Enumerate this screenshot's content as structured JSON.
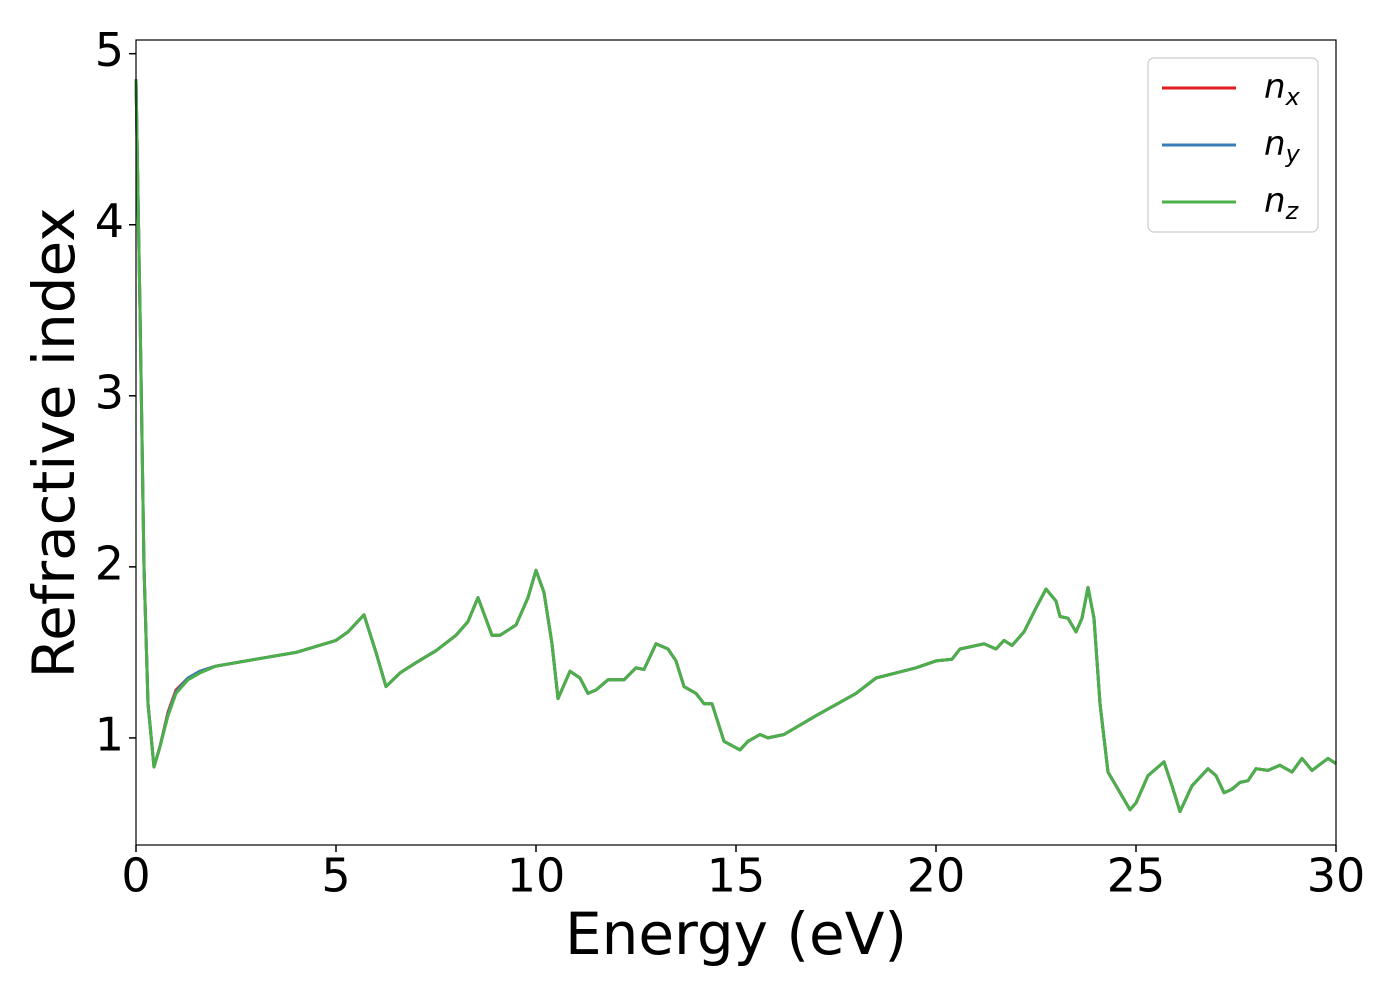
{
  "chart_data": {
    "type": "line",
    "xlabel": "Energy (eV)",
    "ylabel": "Refractive index",
    "x": [
      0,
      0.1,
      0.2,
      0.3,
      0.45,
      0.6,
      0.8,
      1.0,
      1.3,
      1.6,
      2,
      3,
      4,
      5,
      5.3,
      5.7,
      6.0,
      6.25,
      6.6,
      7,
      7.5,
      8,
      8.3,
      8.55,
      8.9,
      9.1,
      9.5,
      9.8,
      10.0,
      10.2,
      10.4,
      10.55,
      10.85,
      11.1,
      11.3,
      11.5,
      11.8,
      12.2,
      12.5,
      12.7,
      12.9,
      13.0,
      13.3,
      13.5,
      13.7,
      14.0,
      14.2,
      14.4,
      14.7,
      15.1,
      15.3,
      15.6,
      15.8,
      16.2,
      17,
      18,
      18.5,
      19,
      19.5,
      20,
      20.4,
      20.6,
      21.2,
      21.5,
      21.7,
      21.9,
      22.2,
      22.5,
      22.75,
      23.0,
      23.1,
      23.3,
      23.5,
      23.65,
      23.8,
      23.95,
      24.1,
      24.3,
      24.5,
      24.85,
      25.0,
      25.3,
      25.7,
      25.9,
      26.1,
      26.4,
      26.8,
      27.0,
      27.2,
      27.4,
      27.6,
      27.8,
      28.0,
      28.3,
      28.6,
      28.9,
      29.15,
      29.4,
      29.8,
      30.0
    ],
    "series": [
      {
        "name": "n_x",
        "color": "#e41a1c",
        "values": [
          4.85,
          3.5,
          2.0,
          1.2,
          0.83,
          0.95,
          1.15,
          1.28,
          1.35,
          1.39,
          1.42,
          1.46,
          1.5,
          1.57,
          1.62,
          1.72,
          1.5,
          1.3,
          1.38,
          1.44,
          1.51,
          1.6,
          1.68,
          1.82,
          1.6,
          1.6,
          1.66,
          1.82,
          1.98,
          1.85,
          1.55,
          1.23,
          1.39,
          1.35,
          1.26,
          1.28,
          1.34,
          1.34,
          1.41,
          1.4,
          1.5,
          1.55,
          1.52,
          1.45,
          1.3,
          1.26,
          1.2,
          1.2,
          0.98,
          0.93,
          0.98,
          1.02,
          1.0,
          1.02,
          1.13,
          1.26,
          1.35,
          1.38,
          1.41,
          1.45,
          1.46,
          1.52,
          1.55,
          1.52,
          1.57,
          1.54,
          1.62,
          1.76,
          1.87,
          1.8,
          1.71,
          1.7,
          1.62,
          1.7,
          1.88,
          1.7,
          1.2,
          0.8,
          0.72,
          0.58,
          0.62,
          0.78,
          0.86,
          0.72,
          0.57,
          0.72,
          0.82,
          0.78,
          0.68,
          0.7,
          0.74,
          0.75,
          0.82,
          0.81,
          0.84,
          0.8,
          0.88,
          0.81,
          0.88,
          0.85
        ]
      },
      {
        "name": "n_y",
        "color": "#377eb8",
        "values": [
          4.85,
          3.5,
          2.0,
          1.2,
          0.83,
          0.95,
          1.14,
          1.27,
          1.35,
          1.39,
          1.42,
          1.46,
          1.5,
          1.57,
          1.62,
          1.72,
          1.5,
          1.3,
          1.38,
          1.44,
          1.51,
          1.6,
          1.68,
          1.82,
          1.6,
          1.6,
          1.66,
          1.82,
          1.98,
          1.85,
          1.55,
          1.23,
          1.39,
          1.35,
          1.26,
          1.28,
          1.34,
          1.34,
          1.41,
          1.4,
          1.5,
          1.55,
          1.52,
          1.45,
          1.3,
          1.26,
          1.2,
          1.2,
          0.98,
          0.93,
          0.98,
          1.02,
          1.0,
          1.02,
          1.13,
          1.26,
          1.35,
          1.38,
          1.41,
          1.45,
          1.46,
          1.52,
          1.55,
          1.52,
          1.57,
          1.54,
          1.62,
          1.76,
          1.87,
          1.8,
          1.71,
          1.7,
          1.62,
          1.7,
          1.88,
          1.7,
          1.2,
          0.8,
          0.72,
          0.58,
          0.62,
          0.78,
          0.86,
          0.72,
          0.57,
          0.72,
          0.82,
          0.78,
          0.68,
          0.7,
          0.74,
          0.75,
          0.82,
          0.81,
          0.84,
          0.8,
          0.88,
          0.81,
          0.88,
          0.85
        ]
      },
      {
        "name": "n_z",
        "color": "#4daf4a",
        "values": [
          4.85,
          3.5,
          2.0,
          1.2,
          0.83,
          0.95,
          1.13,
          1.26,
          1.34,
          1.38,
          1.42,
          1.46,
          1.5,
          1.57,
          1.62,
          1.72,
          1.5,
          1.3,
          1.38,
          1.44,
          1.51,
          1.6,
          1.68,
          1.82,
          1.6,
          1.6,
          1.66,
          1.82,
          1.98,
          1.85,
          1.55,
          1.23,
          1.39,
          1.35,
          1.26,
          1.28,
          1.34,
          1.34,
          1.41,
          1.4,
          1.5,
          1.55,
          1.52,
          1.45,
          1.3,
          1.26,
          1.2,
          1.2,
          0.98,
          0.93,
          0.98,
          1.02,
          1.0,
          1.02,
          1.13,
          1.26,
          1.35,
          1.38,
          1.41,
          1.45,
          1.46,
          1.52,
          1.55,
          1.52,
          1.57,
          1.54,
          1.62,
          1.76,
          1.87,
          1.8,
          1.71,
          1.7,
          1.62,
          1.7,
          1.88,
          1.7,
          1.2,
          0.8,
          0.72,
          0.58,
          0.62,
          0.78,
          0.86,
          0.72,
          0.57,
          0.72,
          0.82,
          0.78,
          0.68,
          0.7,
          0.74,
          0.75,
          0.82,
          0.81,
          0.84,
          0.8,
          0.88,
          0.81,
          0.88,
          0.85
        ]
      }
    ],
    "xlim": [
      0,
      30
    ],
    "xticks": [
      0,
      5,
      10,
      15,
      20,
      25,
      30
    ],
    "ylim": [
      0.374,
      5.08
    ],
    "yticks": [
      1,
      2,
      3,
      4,
      5
    ],
    "grid": false,
    "legend": "upper right"
  }
}
